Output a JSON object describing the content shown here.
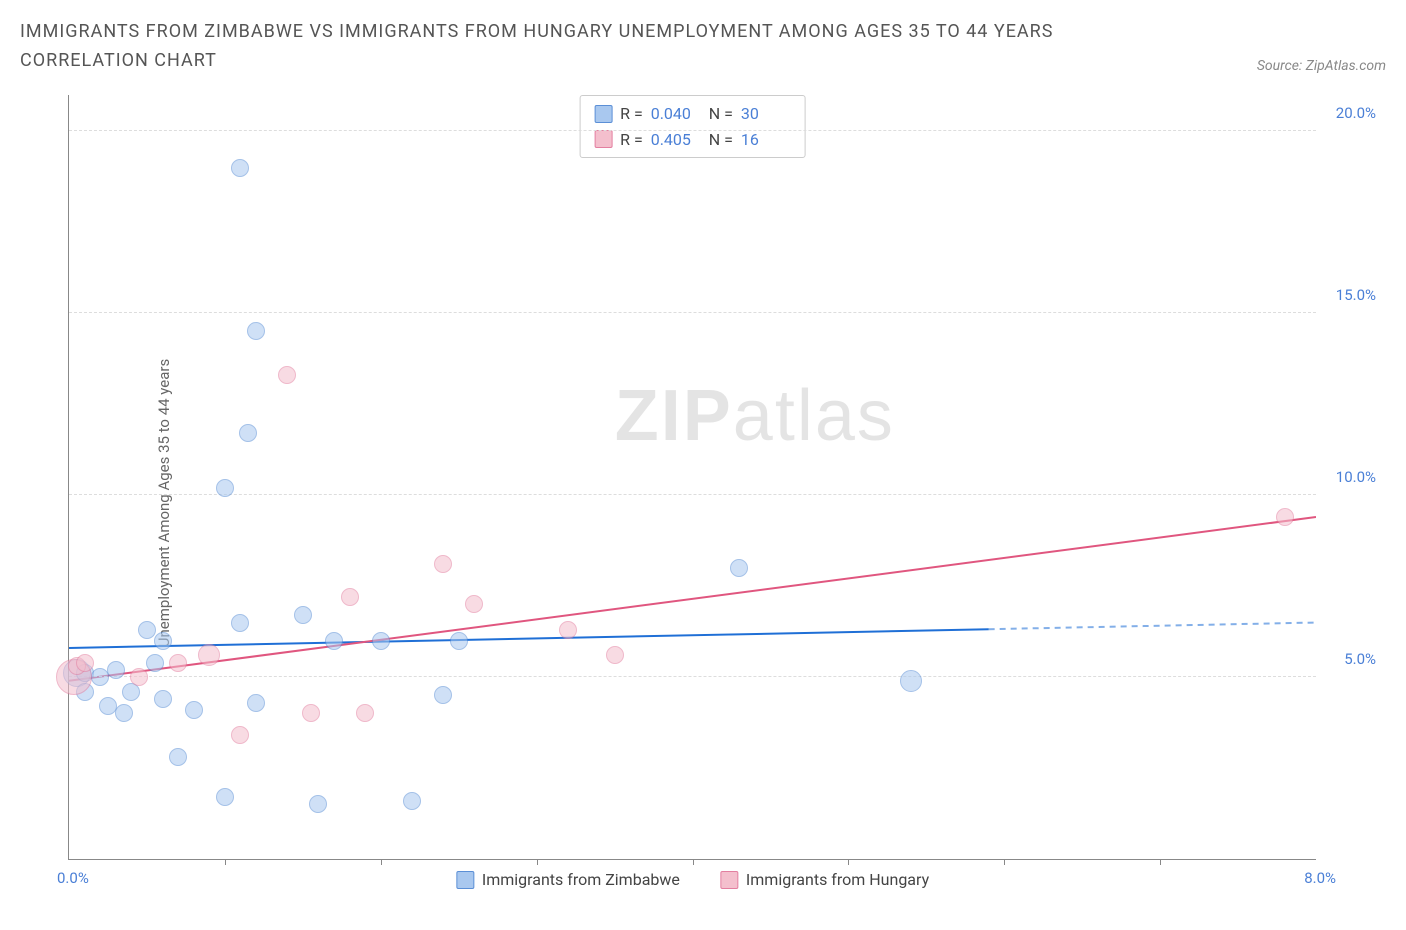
{
  "title": "IMMIGRANTS FROM ZIMBABWE VS IMMIGRANTS FROM HUNGARY UNEMPLOYMENT AMONG AGES 35 TO 44 YEARS CORRELATION CHART",
  "source": "Source: ZipAtlas.com",
  "y_axis_label": "Unemployment Among Ages 35 to 44 years",
  "watermark": {
    "bold": "ZIP",
    "rest": "atlas"
  },
  "chart": {
    "type": "scatter",
    "background_color": "#ffffff",
    "grid_color": "#dddddd",
    "axis_color": "#888888",
    "x": {
      "min": 0.0,
      "max": 8.0,
      "tick_step": 1.0,
      "min_label": "0.0%",
      "max_label": "8.0%",
      "label_color": "#4a7fd6"
    },
    "y": {
      "min": 0.0,
      "max": 21.0,
      "ticks": [
        5.0,
        10.0,
        15.0,
        20.0
      ],
      "tick_labels": [
        "5.0%",
        "10.0%",
        "15.0%",
        "20.0%"
      ],
      "label_color": "#4a7fd6"
    },
    "series": [
      {
        "id": "zimbabwe",
        "label": "Immigrants from Zimbabwe",
        "R": "0.040",
        "N": "30",
        "fill": "#a9c8ef",
        "stroke": "#5b8fd6",
        "fill_opacity": 0.55,
        "marker_radius": 9,
        "trend": {
          "color": "#1f6fd6",
          "width": 2,
          "y_at_xmin": 5.8,
          "y_at_xmax": 6.5,
          "solid_until_x": 5.9
        },
        "points": [
          {
            "x": 0.05,
            "y": 5.1,
            "r": 14
          },
          {
            "x": 0.1,
            "y": 4.6,
            "r": 9
          },
          {
            "x": 0.1,
            "y": 5.1,
            "r": 9
          },
          {
            "x": 0.2,
            "y": 5.0,
            "r": 9
          },
          {
            "x": 0.25,
            "y": 4.2,
            "r": 9
          },
          {
            "x": 0.3,
            "y": 5.2,
            "r": 9
          },
          {
            "x": 0.35,
            "y": 4.0,
            "r": 9
          },
          {
            "x": 0.4,
            "y": 4.6,
            "r": 9
          },
          {
            "x": 0.5,
            "y": 6.3,
            "r": 9
          },
          {
            "x": 0.55,
            "y": 5.4,
            "r": 9
          },
          {
            "x": 0.6,
            "y": 6.0,
            "r": 9
          },
          {
            "x": 0.6,
            "y": 4.4,
            "r": 9
          },
          {
            "x": 0.7,
            "y": 2.8,
            "r": 9
          },
          {
            "x": 0.8,
            "y": 4.1,
            "r": 9
          },
          {
            "x": 1.0,
            "y": 10.2,
            "r": 9
          },
          {
            "x": 1.0,
            "y": 1.7,
            "r": 9
          },
          {
            "x": 1.1,
            "y": 6.5,
            "r": 9
          },
          {
            "x": 1.1,
            "y": 19.0,
            "r": 9
          },
          {
            "x": 1.15,
            "y": 11.7,
            "r": 9
          },
          {
            "x": 1.2,
            "y": 14.5,
            "r": 9
          },
          {
            "x": 1.2,
            "y": 4.3,
            "r": 9
          },
          {
            "x": 1.5,
            "y": 6.7,
            "r": 9
          },
          {
            "x": 1.6,
            "y": 1.5,
            "r": 9
          },
          {
            "x": 1.7,
            "y": 6.0,
            "r": 9
          },
          {
            "x": 2.0,
            "y": 6.0,
            "r": 9
          },
          {
            "x": 2.2,
            "y": 1.6,
            "r": 9
          },
          {
            "x": 2.4,
            "y": 4.5,
            "r": 9
          },
          {
            "x": 2.5,
            "y": 6.0,
            "r": 9
          },
          {
            "x": 4.3,
            "y": 8.0,
            "r": 9
          },
          {
            "x": 5.4,
            "y": 4.9,
            "r": 11
          }
        ]
      },
      {
        "id": "hungary",
        "label": "Immigrants from Hungary",
        "R": "0.405",
        "N": "16",
        "fill": "#f4bfcd",
        "stroke": "#e37fa0",
        "fill_opacity": 0.55,
        "marker_radius": 9,
        "trend": {
          "color": "#e0567f",
          "width": 2,
          "y_at_xmin": 4.9,
          "y_at_xmax": 9.4,
          "solid_until_x": 8.0
        },
        "points": [
          {
            "x": 0.03,
            "y": 5.0,
            "r": 18
          },
          {
            "x": 0.05,
            "y": 5.3,
            "r": 9
          },
          {
            "x": 0.1,
            "y": 5.4,
            "r": 9
          },
          {
            "x": 0.45,
            "y": 5.0,
            "r": 9
          },
          {
            "x": 0.7,
            "y": 5.4,
            "r": 9
          },
          {
            "x": 0.9,
            "y": 5.6,
            "r": 11
          },
          {
            "x": 1.1,
            "y": 3.4,
            "r": 9
          },
          {
            "x": 1.4,
            "y": 13.3,
            "r": 9
          },
          {
            "x": 1.55,
            "y": 4.0,
            "r": 9
          },
          {
            "x": 1.8,
            "y": 7.2,
            "r": 9
          },
          {
            "x": 1.9,
            "y": 4.0,
            "r": 9
          },
          {
            "x": 2.4,
            "y": 8.1,
            "r": 9
          },
          {
            "x": 2.6,
            "y": 7.0,
            "r": 9
          },
          {
            "x": 3.2,
            "y": 6.3,
            "r": 9
          },
          {
            "x": 3.5,
            "y": 5.6,
            "r": 9
          },
          {
            "x": 7.8,
            "y": 9.4,
            "r": 9
          }
        ]
      }
    ],
    "stats_legend": {
      "R_label": "R =",
      "N_label": "N ="
    }
  }
}
